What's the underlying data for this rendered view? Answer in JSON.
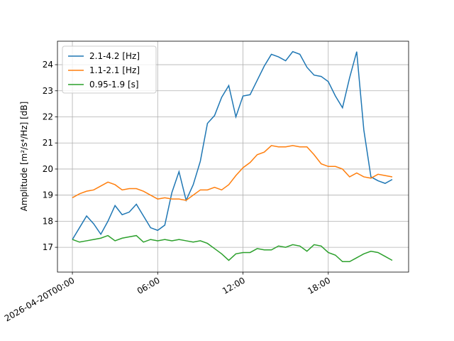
{
  "chart_data": {
    "type": "line",
    "ylabel": "Amplitude [m²/s⁴/Hz] [dB]",
    "x": [
      0,
      0.5,
      1,
      1.5,
      2,
      2.5,
      3,
      3.5,
      4,
      4.5,
      5,
      5.5,
      6,
      6.5,
      7,
      7.5,
      8,
      8.5,
      9,
      9.5,
      10,
      10.5,
      11,
      11.5,
      12,
      12.5,
      13,
      13.5,
      14,
      14.5,
      15,
      15.5,
      16,
      16.5,
      17,
      17.5,
      18,
      18.5,
      19,
      19.5,
      20,
      20.5,
      21,
      21.5,
      22,
      22.5
    ],
    "series": [
      {
        "name": "2.1-4.2 [Hz]",
        "color": "#1f77b4",
        "values": [
          17.3,
          17.75,
          18.2,
          17.9,
          17.5,
          18.0,
          18.6,
          18.25,
          18.35,
          18.65,
          18.2,
          17.75,
          17.65,
          17.85,
          19.1,
          19.9,
          18.8,
          19.4,
          20.3,
          21.75,
          22.05,
          22.75,
          23.2,
          22.0,
          22.8,
          22.85,
          23.4,
          23.95,
          24.4,
          24.3,
          24.15,
          24.5,
          24.4,
          23.9,
          23.6,
          23.55,
          23.35,
          22.8,
          22.35,
          23.5,
          24.5,
          21.5,
          19.7,
          19.55,
          19.45,
          19.6
        ]
      },
      {
        "name": "1.1-2.1 [Hz]",
        "color": "#ff7f0e",
        "values": [
          18.9,
          19.05,
          19.15,
          19.2,
          19.35,
          19.5,
          19.4,
          19.2,
          19.25,
          19.25,
          19.15,
          19.0,
          18.85,
          18.9,
          18.85,
          18.85,
          18.8,
          19.0,
          19.2,
          19.2,
          19.3,
          19.2,
          19.4,
          19.75,
          20.05,
          20.25,
          20.55,
          20.65,
          20.9,
          20.85,
          20.85,
          20.9,
          20.85,
          20.85,
          20.55,
          20.2,
          20.1,
          20.1,
          20.0,
          19.7,
          19.85,
          19.7,
          19.65,
          19.8,
          19.75,
          19.7
        ]
      },
      {
        "name": "0.95-1.9 [s]",
        "color": "#2ca02c",
        "values": [
          17.3,
          17.2,
          17.25,
          17.3,
          17.35,
          17.45,
          17.25,
          17.35,
          17.4,
          17.45,
          17.2,
          17.3,
          17.25,
          17.3,
          17.25,
          17.3,
          17.25,
          17.2,
          17.25,
          17.15,
          16.95,
          16.75,
          16.5,
          16.75,
          16.8,
          16.8,
          16.95,
          16.9,
          16.9,
          17.05,
          17.0,
          17.1,
          17.05,
          16.85,
          17.1,
          17.05,
          16.8,
          16.7,
          16.45,
          16.45,
          16.6,
          16.75,
          16.85,
          16.8,
          16.65,
          16.5
        ]
      }
    ],
    "xlim": [
      -1.05,
      23.65
    ],
    "xticks": [
      {
        "value": 0,
        "label": "2026-04-20T00:00"
      },
      {
        "value": 6,
        "label": "06:00"
      },
      {
        "value": 12,
        "label": "12:00"
      },
      {
        "value": 18,
        "label": "18:00"
      }
    ],
    "ylim": [
      16.05,
      24.9
    ],
    "yticks": [
      17,
      18,
      19,
      20,
      21,
      22,
      23,
      24
    ],
    "grid": true,
    "legend": "upper-left"
  }
}
